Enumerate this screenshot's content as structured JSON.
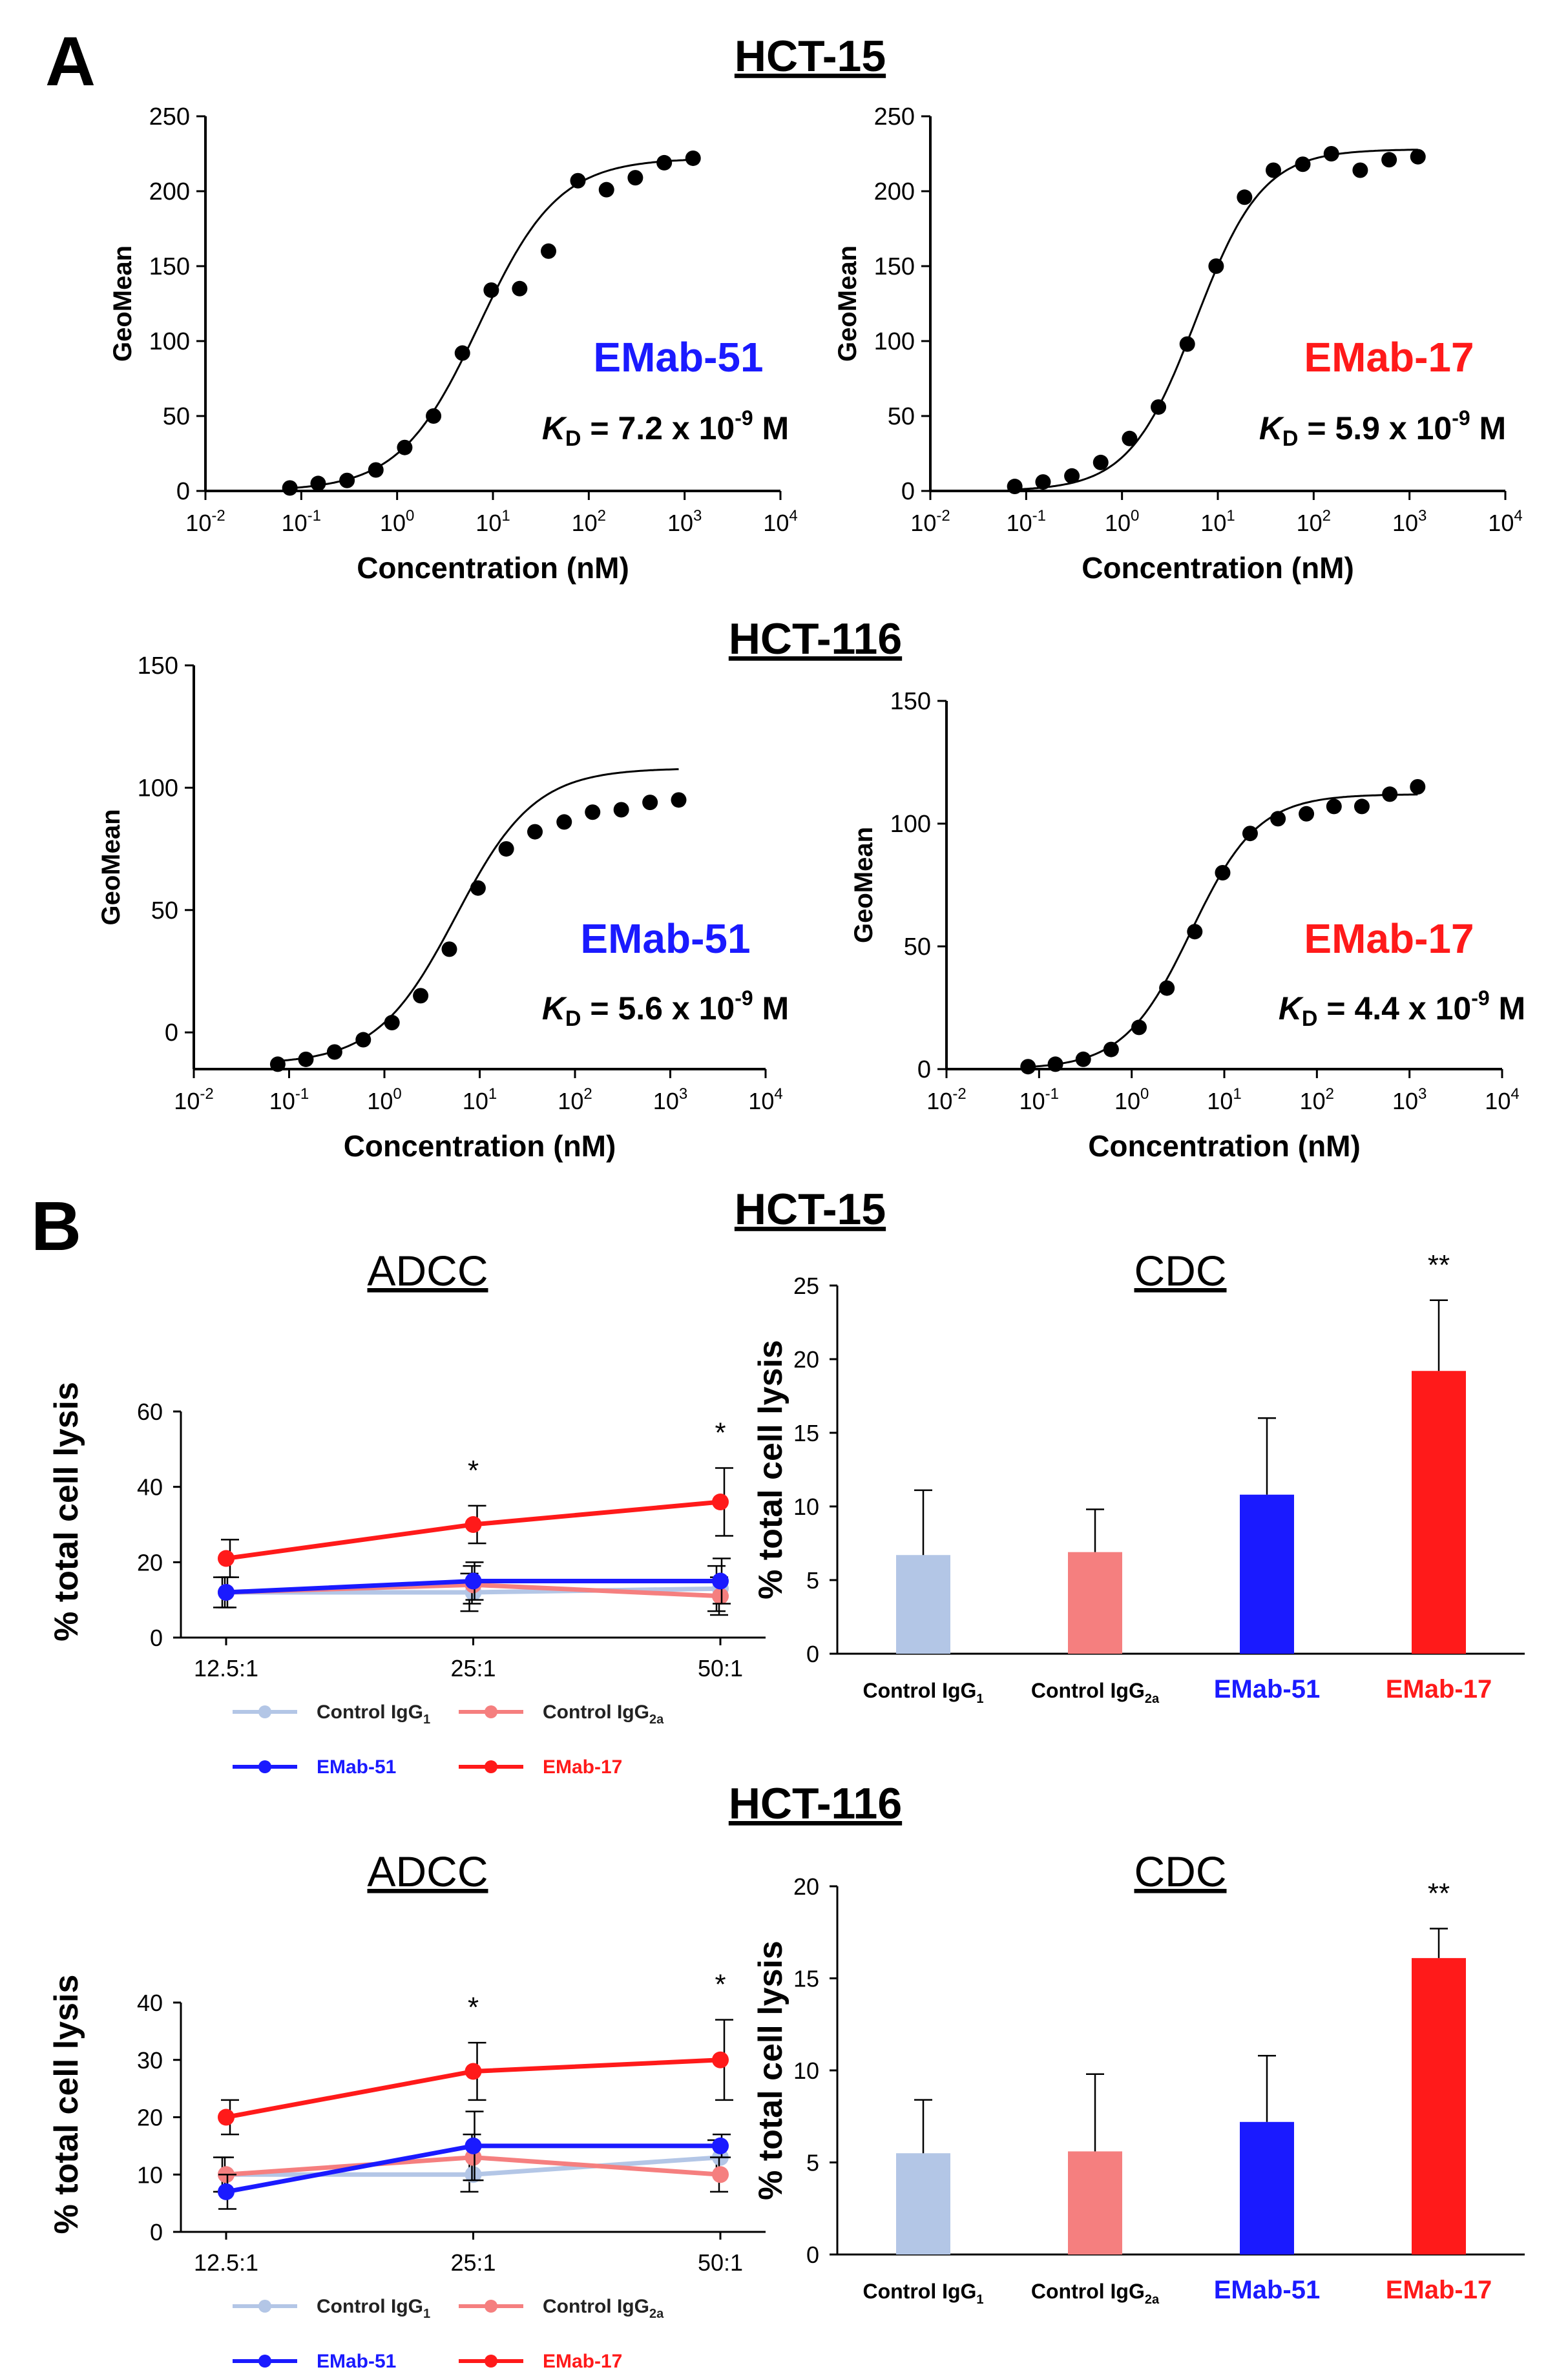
{
  "panels": {
    "a": "A",
    "b": "B"
  },
  "cell_lines": {
    "hct15": "HCT-15",
    "hct116": "HCT-116"
  },
  "colors": {
    "emab51": "#1a1aff",
    "emab17": "#ff1a1a",
    "ctrl_igg1": "#b3c6e6",
    "ctrl_igg2a": "#f57f7f",
    "dots": "#000000"
  },
  "binding_common": {
    "xlabel": "Concentration (nM)",
    "ylabel": "GeoMean",
    "x_ticks": [
      "10-2",
      "10-1",
      "100",
      "101",
      "102",
      "103",
      "104"
    ],
    "kd_prefix": "K",
    "kd_sub": "D",
    "kd_suffix": "M"
  },
  "chart_data": [
    {
      "id": "a1",
      "type": "scatter",
      "title": "HCT-15",
      "label": "EMab-51",
      "color_key": "emab51",
      "kd_value": "= 7.2 x 10",
      "kd_exp": "-9",
      "ylim": [
        0,
        250
      ],
      "yticks": [
        0,
        50,
        100,
        150,
        200,
        250
      ],
      "xlim_log10": [
        -2,
        4
      ],
      "fit": {
        "top": 222,
        "logkd": 0.857,
        "hill": 1.05
      },
      "x": [
        0.076,
        0.15,
        0.3,
        0.6,
        1.2,
        2.4,
        4.8,
        9.6,
        19,
        38,
        77,
        153,
        306,
        613,
        1225
      ],
      "y": [
        2,
        5,
        7,
        14,
        29,
        50,
        92,
        134,
        135,
        160,
        207,
        201,
        209,
        219,
        222
      ]
    },
    {
      "id": "a2",
      "type": "scatter",
      "title": "HCT-15",
      "label": "EMab-17",
      "color_key": "emab17",
      "kd_value": "= 5.9 x 10",
      "kd_exp": "-9",
      "ylim": [
        0,
        250
      ],
      "yticks": [
        0,
        50,
        100,
        150,
        200,
        250
      ],
      "xlim_log10": [
        -2,
        4
      ],
      "fit": {
        "top": 228,
        "logkd": 0.77,
        "hill": 1.25
      },
      "x": [
        0.076,
        0.15,
        0.3,
        0.6,
        1.2,
        2.4,
        4.8,
        9.6,
        19,
        38,
        77,
        153,
        306,
        613,
        1225
      ],
      "y": [
        3,
        6,
        10,
        19,
        35,
        56,
        98,
        150,
        196,
        214,
        218,
        225,
        214,
        221,
        223
      ]
    },
    {
      "id": "a3",
      "type": "scatter",
      "title": "HCT-116",
      "label": "EMab-51",
      "color_key": "emab51",
      "kd_value": "= 5.6 x 10",
      "kd_exp": "-9",
      "ylim": [
        -15,
        150
      ],
      "yticks": [
        0,
        50,
        100,
        150
      ],
      "xlim_log10": [
        -2,
        4
      ],
      "fit": {
        "top": 108,
        "logkd": 0.75,
        "hill": 1.05,
        "bottom": -13
      },
      "x": [
        0.076,
        0.15,
        0.3,
        0.6,
        1.2,
        2.4,
        4.8,
        9.6,
        19,
        38,
        77,
        153,
        306,
        613,
        1225
      ],
      "y": [
        -13,
        -11,
        -8,
        -3,
        4,
        15,
        34,
        59,
        75,
        82,
        86,
        90,
        91,
        94,
        95
      ]
    },
    {
      "id": "a4",
      "type": "scatter",
      "title": "HCT-116",
      "label": "EMab-17",
      "color_key": "emab17",
      "kd_value": "= 4.4 x 10",
      "kd_exp": "-9",
      "ylim": [
        0,
        150
      ],
      "yticks": [
        0,
        50,
        100,
        150
      ],
      "xlim_log10": [
        -2,
        4
      ],
      "fit": {
        "top": 112,
        "logkd": 0.64,
        "hill": 1.2
      },
      "x": [
        0.076,
        0.15,
        0.3,
        0.6,
        1.2,
        2.4,
        4.8,
        9.6,
        19,
        38,
        77,
        153,
        306,
        613,
        1225
      ],
      "y": [
        1,
        2,
        4,
        8,
        17,
        33,
        56,
        80,
        96,
        102,
        104,
        107,
        107,
        112,
        115
      ]
    },
    {
      "id": "b1",
      "type": "line",
      "title": "ADCC",
      "ylabel": "% total cell lysis",
      "categories": [
        "12.5:1",
        "25:1",
        "50:1"
      ],
      "ylim": [
        0,
        60
      ],
      "yticks": [
        0,
        20,
        40,
        60
      ],
      "significance": [
        "",
        "*",
        "*"
      ],
      "series": [
        {
          "name": "Control IgG",
          "sub": "1",
          "color_key": "ctrl_igg1",
          "values": [
            12,
            12,
            13
          ],
          "err": [
            4,
            5,
            6
          ]
        },
        {
          "name": "Control IgG",
          "sub": "2a",
          "color_key": "ctrl_igg2a",
          "values": [
            12,
            14,
            11
          ],
          "err": [
            4,
            5,
            5
          ]
        },
        {
          "name": "EMab-51",
          "sub": "",
          "color_key": "emab51",
          "values": [
            12,
            15,
            15
          ],
          "err": [
            4,
            5,
            6
          ]
        },
        {
          "name": "EMab-17",
          "sub": "",
          "color_key": "emab17",
          "values": [
            21,
            30,
            36
          ],
          "err": [
            5,
            5,
            9
          ]
        }
      ]
    },
    {
      "id": "b2",
      "type": "bar",
      "title": "CDC",
      "ylabel": "% total cell lysis",
      "categories": [
        "Control IgG",
        "Control IgG",
        "EMab-51",
        "EMab-17"
      ],
      "subs": [
        "1",
        "2a",
        "",
        ""
      ],
      "color_keys": [
        "ctrl_igg1",
        "ctrl_igg2a",
        "emab51",
        "emab17"
      ],
      "label_colors": [
        "#000000",
        "#000000",
        "#1a1aff",
        "#ff1a1a"
      ],
      "ylim": [
        0,
        25
      ],
      "yticks": [
        0,
        5,
        10,
        15,
        20,
        25
      ],
      "values": [
        6.7,
        6.9,
        10.8,
        19.2
      ],
      "err": [
        4.4,
        2.9,
        5.2,
        4.8
      ],
      "significance": [
        "",
        "",
        "",
        "**"
      ]
    },
    {
      "id": "b3",
      "type": "line",
      "title": "ADCC",
      "ylabel": "% total cell lysis",
      "categories": [
        "12.5:1",
        "25:1",
        "50:1"
      ],
      "ylim": [
        0,
        40
      ],
      "yticks": [
        0,
        10,
        20,
        30,
        40
      ],
      "significance": [
        "",
        "*",
        "*"
      ],
      "series": [
        {
          "name": "Control IgG",
          "sub": "1",
          "color_key": "ctrl_igg1",
          "values": [
            10,
            10,
            13
          ],
          "err": [
            3,
            3,
            3
          ]
        },
        {
          "name": "Control IgG",
          "sub": "2a",
          "color_key": "ctrl_igg2a",
          "values": [
            10,
            13,
            10
          ],
          "err": [
            3,
            4,
            3
          ]
        },
        {
          "name": "EMab-51",
          "sub": "",
          "color_key": "emab51",
          "values": [
            7,
            15,
            15
          ],
          "err": [
            3,
            6,
            2
          ]
        },
        {
          "name": "EMab-17",
          "sub": "",
          "color_key": "emab17",
          "values": [
            20,
            28,
            30
          ],
          "err": [
            3,
            5,
            7
          ]
        }
      ]
    },
    {
      "id": "b4",
      "type": "bar",
      "title": "CDC",
      "ylabel": "% total cell lysis",
      "categories": [
        "Control IgG",
        "Control IgG",
        "EMab-51",
        "EMab-17"
      ],
      "subs": [
        "1",
        "2a",
        "",
        ""
      ],
      "color_keys": [
        "ctrl_igg1",
        "ctrl_igg2a",
        "emab51",
        "emab17"
      ],
      "label_colors": [
        "#000000",
        "#000000",
        "#1a1aff",
        "#ff1a1a"
      ],
      "ylim": [
        0,
        20
      ],
      "yticks": [
        0,
        5,
        10,
        15,
        20
      ],
      "values": [
        5.5,
        5.6,
        7.2,
        16.1
      ],
      "err": [
        2.9,
        4.2,
        3.6,
        1.6
      ],
      "significance": [
        "",
        "",
        "",
        "**"
      ]
    }
  ]
}
